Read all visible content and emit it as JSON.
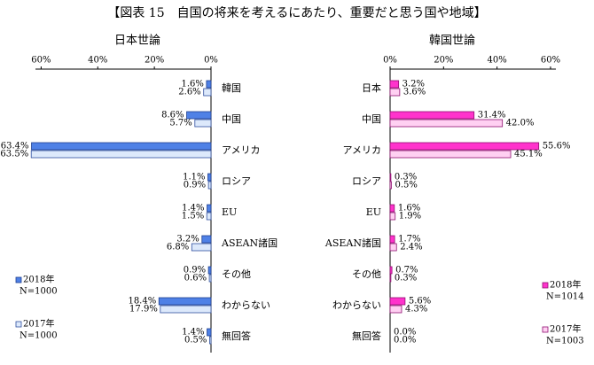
{
  "title": "【図表 15　自国の将来を考えるにあたり、重要だと思う国や地域】",
  "chart_data": [
    {
      "type": "bar",
      "orientation": "horizontal",
      "title": "日本世論",
      "categories": [
        "韓国",
        "中国",
        "アメリカ",
        "ロシア",
        "EU",
        "ASEAN諸国",
        "その他",
        "わからない",
        "無回答"
      ],
      "series": [
        {
          "name": "2018年",
          "n": "N=1000",
          "color": "#4f81e6",
          "edge": "#1f3f8f",
          "values": [
            1.6,
            8.6,
            63.4,
            1.1,
            1.4,
            3.2,
            0.9,
            18.4,
            1.4
          ],
          "value_labels": [
            "1.6%",
            "8.6%",
            "63.4%",
            "1.1%",
            "1.4%",
            "3.2%",
            "0.9%",
            "18.4%",
            "1.4%"
          ]
        },
        {
          "name": "2017年",
          "n": "N=1000",
          "color": "#dde9fb",
          "edge": "#2f4f9f",
          "values": [
            2.6,
            5.7,
            63.5,
            0.9,
            1.5,
            6.8,
            0.6,
            17.9,
            0.5
          ],
          "value_labels": [
            "2.6%",
            "5.7%",
            "63.5%",
            "0.9%",
            "1.5%",
            "6.8%",
            "0.6%",
            "17.9%",
            "0.5%"
          ]
        }
      ],
      "xlim": [
        62,
        0
      ],
      "xticks": [
        {
          "value": 60,
          "label": "60%"
        },
        {
          "value": 40,
          "label": "40%"
        },
        {
          "value": 20,
          "label": "20%"
        },
        {
          "value": 0,
          "label": "0%"
        }
      ],
      "legend": "lower left"
    },
    {
      "type": "bar",
      "orientation": "horizontal",
      "title": "韓国世論",
      "categories": [
        "日本",
        "中国",
        "アメリカ",
        "ロシア",
        "EU",
        "ASEAN諸国",
        "その他",
        "わからない",
        "無回答"
      ],
      "series": [
        {
          "name": "2018年",
          "n": "N=1014",
          "color": "#ff33cc",
          "edge": "#8f1070",
          "values": [
            3.2,
            31.4,
            55.6,
            0.3,
            1.6,
            1.7,
            0.7,
            5.6,
            0.0
          ],
          "value_labels": [
            "3.2%",
            "31.4%",
            "55.6%",
            "0.3%",
            "1.6%",
            "1.7%",
            "0.7%",
            "5.6%",
            "0.0%"
          ]
        },
        {
          "name": "2017年",
          "n": "N=1003",
          "color": "#ffd0f2",
          "edge": "#8f1070",
          "values": [
            3.6,
            42.0,
            45.1,
            0.5,
            1.9,
            2.4,
            0.3,
            4.3,
            0.0
          ],
          "value_labels": [
            "3.6%",
            "42.0%",
            "45.1%",
            "0.5%",
            "1.9%",
            "2.4%",
            "0.3%",
            "4.3%",
            "0.0%"
          ]
        }
      ],
      "xlim": [
        0,
        62
      ],
      "xticks": [
        {
          "value": 0,
          "label": "0%"
        },
        {
          "value": 20,
          "label": "20%"
        },
        {
          "value": 40,
          "label": "40%"
        },
        {
          "value": 60,
          "label": "60%"
        }
      ],
      "legend": "lower right"
    }
  ]
}
